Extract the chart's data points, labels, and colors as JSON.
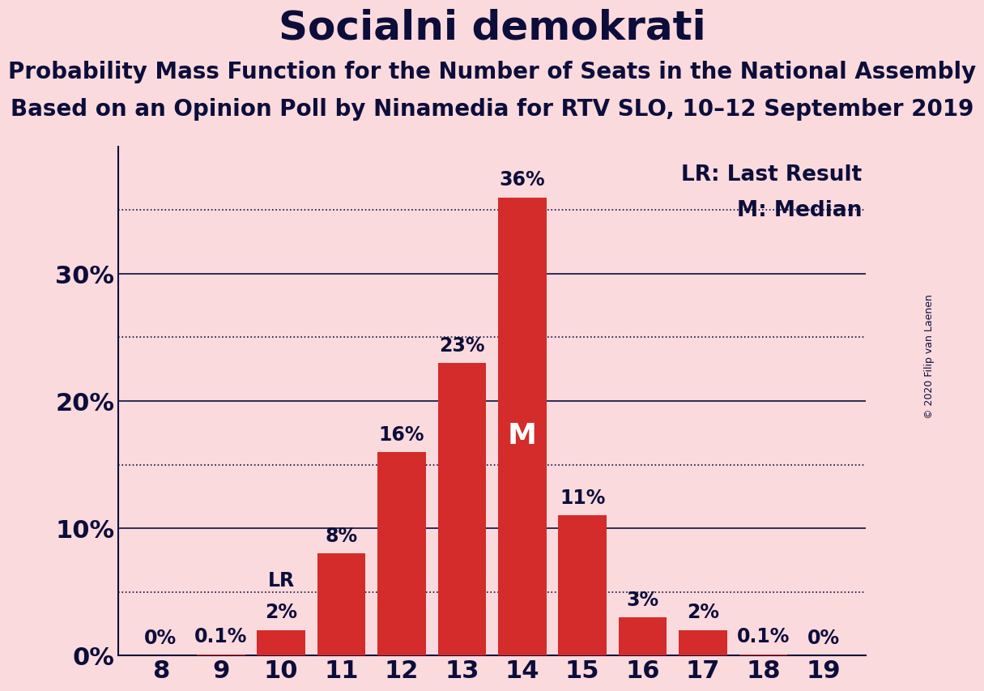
{
  "title": "Socialni demokrati",
  "subtitle1": "Probability Mass Function for the Number of Seats in the National Assembly",
  "subtitle2": "Based on an Opinion Poll by Ninamedia for RTV SLO, 10–12 September 2019",
  "copyright": "© 2020 Filip van Laenen",
  "seats": [
    8,
    9,
    10,
    11,
    12,
    13,
    14,
    15,
    16,
    17,
    18,
    19
  ],
  "probabilities": [
    0.0,
    0.1,
    2.0,
    8.0,
    16.0,
    23.0,
    36.0,
    11.0,
    3.0,
    2.0,
    0.1,
    0.0
  ],
  "bar_color": "#d42b2b",
  "background_color": "#fadadd",
  "axis_color": "#0d0d3a",
  "text_color": "#0d0d3a",
  "last_result_seat": 10,
  "median_seat": 14,
  "yticks": [
    0,
    10,
    20,
    30
  ],
  "ytick_labels": [
    "0%",
    "10%",
    "20%",
    "30%"
  ],
  "dotted_lines": [
    5,
    15,
    25,
    35
  ],
  "ylim": [
    0,
    40
  ],
  "legend_lr": "LR: Last Result",
  "legend_m": "M: Median",
  "bar_label_fontsize": 17,
  "title_fontsize": 36,
  "subtitle_fontsize": 20,
  "ytick_fontsize": 22,
  "xtick_fontsize": 22,
  "legend_fontsize": 19,
  "copyright_fontsize": 9,
  "median_label_fontsize": 26,
  "lr_label_fontsize": 17
}
